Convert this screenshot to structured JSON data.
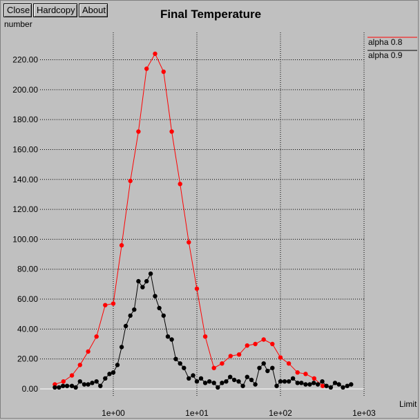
{
  "toolbar": {
    "close_label": "Close",
    "hardcopy_label": "Hardcopy",
    "about_label": "About"
  },
  "chart_data": {
    "type": "line",
    "title": "Final Temperature",
    "xlabel": "Limit",
    "ylabel": "number",
    "xscale": "log",
    "xlim": [
      0.1,
      1000
    ],
    "ylim": [
      0,
      250
    ],
    "grid": true,
    "legend_position": "top-right",
    "x_ticks": [
      {
        "value": 1,
        "label": "1e+00"
      },
      {
        "value": 10,
        "label": "1e+01"
      },
      {
        "value": 100,
        "label": "1e+02"
      },
      {
        "value": 1000,
        "label": "1e+03"
      }
    ],
    "y_ticks": [
      0,
      20,
      40,
      60,
      80,
      100,
      120,
      140,
      160,
      180,
      200,
      220
    ],
    "y_tick_labels": [
      "0.00",
      "20.00",
      "40.00",
      "60.00",
      "80.00",
      "100.00",
      "120.00",
      "140.00",
      "160.00",
      "180.00",
      "200.00",
      "220.00"
    ],
    "series": [
      {
        "name": "alpha 0.8",
        "color": "#ff0000",
        "x": [
          0.2,
          0.253,
          0.32,
          0.4,
          0.5,
          0.63,
          0.8,
          1.0,
          1.26,
          1.6,
          2.0,
          2.5,
          3.16,
          4.0,
          5.0,
          6.3,
          8.0,
          10.0,
          12.6,
          16.0,
          20.0,
          25.3,
          32.0,
          40.0,
          50.0,
          63.0,
          80.0,
          100.0,
          126.0,
          160.0,
          200.0,
          253.0,
          320.0
        ],
        "y": [
          3,
          5,
          9,
          16,
          25,
          35,
          56,
          57,
          96,
          139,
          172,
          214,
          224,
          212,
          172,
          137,
          98,
          67,
          35,
          14,
          17,
          22,
          23,
          29,
          30,
          33,
          30,
          21,
          17,
          11,
          10,
          7,
          2
        ]
      },
      {
        "name": "alpha 0.9",
        "color": "#000000",
        "x": [
          0.2,
          0.224,
          0.25,
          0.28,
          0.32,
          0.355,
          0.4,
          0.45,
          0.5,
          0.56,
          0.63,
          0.7,
          0.8,
          0.9,
          1.0,
          1.12,
          1.26,
          1.41,
          1.6,
          1.78,
          2.0,
          2.24,
          2.5,
          2.8,
          3.16,
          3.55,
          4.0,
          4.5,
          5.0,
          5.6,
          6.3,
          7.0,
          8.0,
          9.0,
          10.0,
          11.2,
          12.6,
          14.1,
          16.0,
          17.8,
          20.0,
          22.4,
          25.0,
          28.0,
          31.6,
          35.5,
          40.0,
          45.0,
          50.0,
          56.0,
          63.0,
          70.0,
          80.0,
          90.0,
          100.0,
          112.0,
          126.0,
          141.0,
          160.0,
          178.0,
          200.0,
          224.0,
          250.0,
          280.0,
          316.0,
          355.0,
          400.0,
          450.0,
          500.0,
          560.0,
          630.0,
          700.0
        ],
        "y": [
          1,
          1,
          2,
          2,
          2,
          1,
          5,
          3,
          3,
          4,
          5,
          2,
          7,
          10,
          11,
          16,
          28,
          42,
          49,
          53,
          72,
          68,
          72,
          77,
          62,
          54,
          49,
          35,
          33,
          20,
          17,
          14,
          7,
          9,
          5,
          7,
          4,
          5,
          4,
          1,
          4,
          5,
          8,
          6,
          5,
          2,
          8,
          6,
          3,
          14,
          17,
          12,
          14,
          2,
          5,
          5,
          5,
          7,
          4,
          4,
          3,
          3,
          4,
          3,
          5,
          2,
          1,
          4,
          3,
          1,
          2,
          3
        ]
      }
    ]
  }
}
